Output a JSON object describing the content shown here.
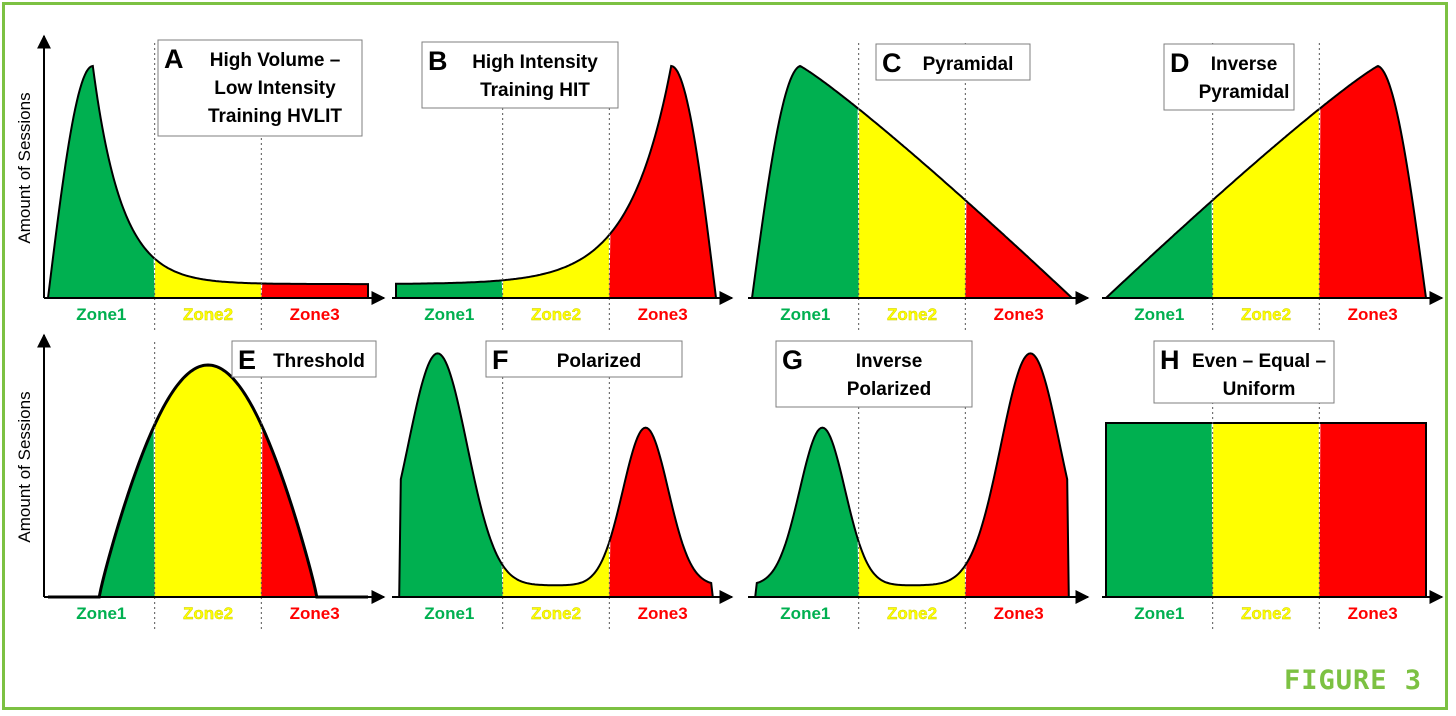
{
  "figure_label": "FIGURE 3",
  "y_axis_label": "Amount of Sessions",
  "zone_labels": [
    "Zone1",
    "Zone2",
    "Zone3"
  ],
  "colors": {
    "zone1": "#00b050",
    "zone2": "#ffff00",
    "zone3": "#ff0000",
    "border": "#7cc142"
  },
  "panels": [
    {
      "letter": "A",
      "lines": [
        "High Volume –",
        "Low Intensity",
        "Training HVLIT"
      ]
    },
    {
      "letter": "B",
      "lines": [
        "High Intensity",
        "Training HIT"
      ]
    },
    {
      "letter": "C",
      "lines": [
        "Pyramidal"
      ]
    },
    {
      "letter": "D",
      "lines": [
        "Inverse",
        "Pyramidal"
      ]
    },
    {
      "letter": "E",
      "lines": [
        "Threshold"
      ]
    },
    {
      "letter": "F",
      "lines": [
        "Polarized"
      ]
    },
    {
      "letter": "G",
      "lines": [
        "Inverse",
        "Polarized"
      ]
    },
    {
      "letter": "H",
      "lines": [
        "Even – Equal –",
        "Uniform"
      ]
    }
  ]
}
